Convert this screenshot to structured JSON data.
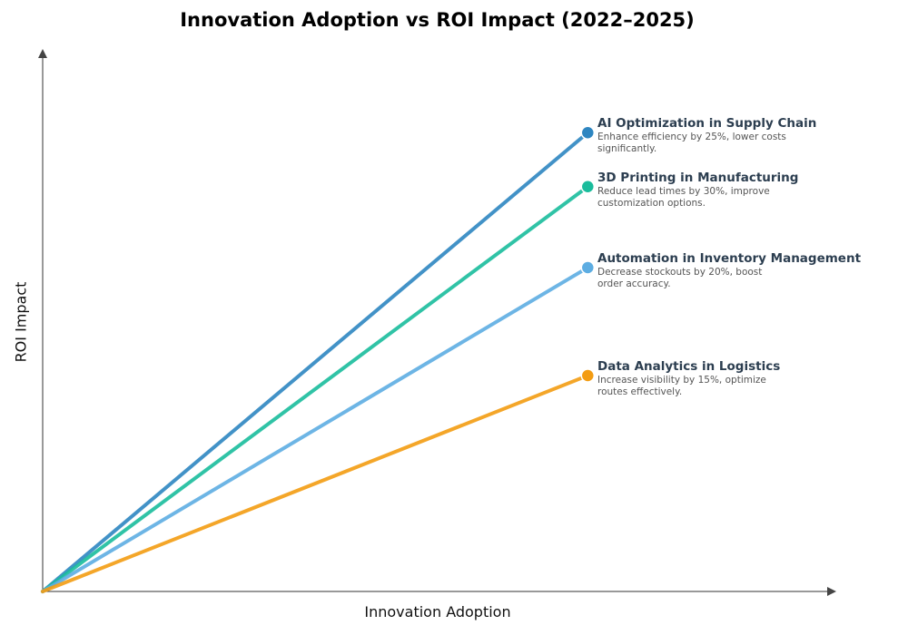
{
  "chart_data": {
    "type": "line",
    "title": "Innovation Adoption vs ROI Impact (2022–2025)",
    "xlabel": "Innovation Adoption",
    "ylabel": "ROI Impact",
    "xlim": [
      0,
      1
    ],
    "ylim": [
      0,
      1
    ],
    "grid": false,
    "series": [
      {
        "name": "AI Optimization in Supply Chain",
        "description": "Enhance efficiency by 25%, lower costs significantly.",
        "color": "#2e86c1",
        "x": [
          0,
          0.69
        ],
        "y": [
          0,
          0.85
        ]
      },
      {
        "name": "3D Printing in Manufacturing",
        "description": "Reduce lead times by 30%, improve customization options.",
        "color": "#1abc9c",
        "x": [
          0,
          0.69
        ],
        "y": [
          0,
          0.75
        ]
      },
      {
        "name": "Automation in Inventory Management",
        "description": "Decrease stockouts by 20%, boost order accuracy.",
        "color": "#5dade2",
        "x": [
          0,
          0.69
        ],
        "y": [
          0,
          0.6
        ]
      },
      {
        "name": "Data Analytics in Logistics",
        "description": "Increase visibility by 15%, optimize routes effectively.",
        "color": "#f39c12",
        "x": [
          0,
          0.69
        ],
        "y": [
          0,
          0.4
        ]
      }
    ]
  }
}
